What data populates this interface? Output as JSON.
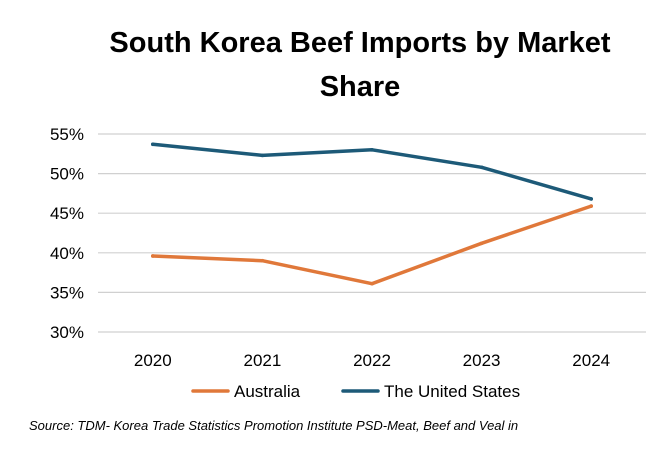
{
  "chart_data": {
    "type": "line",
    "title": "South Korea Beef Imports by Market Share",
    "title_lines": [
      "South Korea Beef Imports by Market",
      "Share"
    ],
    "categories": [
      "2020",
      "2021",
      "2022",
      "2023",
      "2024"
    ],
    "ylim": [
      30,
      55
    ],
    "yticks": [
      30,
      35,
      40,
      45,
      50,
      55
    ],
    "ytick_labels": [
      "30%",
      "35%",
      "40%",
      "45%",
      "50%",
      "55%"
    ],
    "grid": true,
    "legend_position": "bottom",
    "series": [
      {
        "name": "Australia",
        "color": "#E0783A",
        "values": [
          39.6,
          39.0,
          36.1,
          41.2,
          45.9
        ]
      },
      {
        "name": "The United States",
        "color": "#1D5A78",
        "values": [
          53.7,
          52.3,
          53.0,
          50.8,
          46.8
        ]
      }
    ],
    "source": "Source: TDM- Korea Trade Statistics Promotion Institute PSD-Meat, Beef and Veal in"
  }
}
